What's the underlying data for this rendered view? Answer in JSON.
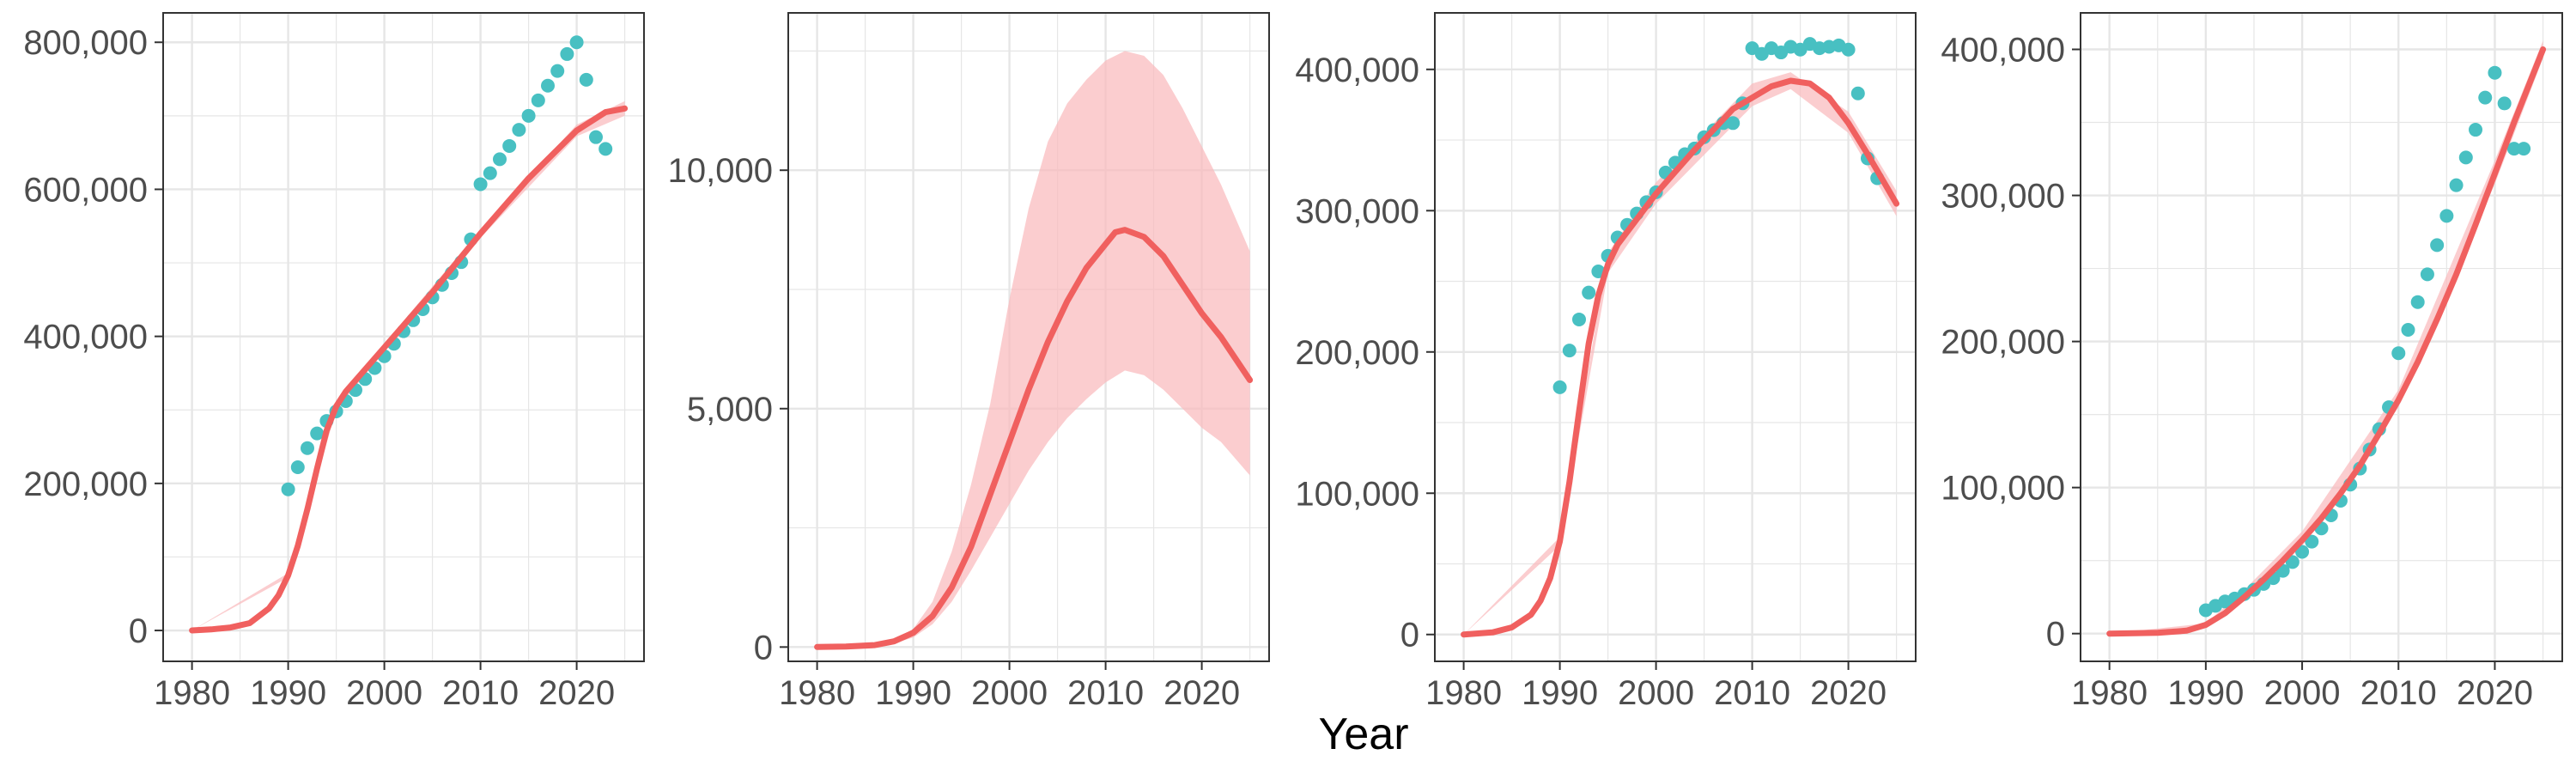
{
  "colors": {
    "fit_line": "#f0605f",
    "fit_band": "#f9b8bb",
    "observed_points": "#48c0c2",
    "grid": "#e6e6e6",
    "panel_border": "#333333",
    "tick_text": "#4d4d4d"
  },
  "chart_data": {
    "xlabel": "Year",
    "grid": true,
    "panels": [
      {
        "type": "line",
        "xlim": [
          1977,
          2027
        ],
        "ylim": [
          -42000,
          840000
        ],
        "xticks": [
          1980,
          1990,
          2000,
          2010,
          2020
        ],
        "yticks": [
          0,
          200000,
          400000,
          600000,
          800000
        ],
        "ytick_labels": [
          "0",
          "200,000",
          "400,000",
          "600,000",
          "800,000"
        ],
        "fit": {
          "x": [
            1980,
            1982,
            1984,
            1986,
            1988,
            1989,
            1990,
            1991,
            1992,
            1993,
            1994,
            1995,
            1996,
            2000,
            2005,
            2010,
            2015,
            2020,
            2023,
            2025
          ],
          "y": [
            0,
            1500,
            4000,
            10000,
            30000,
            48000,
            75000,
            115000,
            165000,
            220000,
            272000,
            305000,
            325000,
            385000,
            460000,
            540000,
            615000,
            680000,
            705000,
            710000
          ]
        },
        "band": {
          "x": [
            1980,
            1990,
            1995,
            2000,
            2010,
            2020,
            2025
          ],
          "lower": [
            0,
            72000,
            300000,
            380000,
            534000,
            672000,
            700000
          ],
          "upper": [
            0,
            78000,
            310000,
            390000,
            546000,
            688000,
            720000
          ]
        },
        "points": {
          "x": [
            1990,
            1991,
            1992,
            1993,
            1994,
            1995,
            1996,
            1997,
            1998,
            1999,
            2000,
            2001,
            2002,
            2003,
            2004,
            2005,
            2006,
            2007,
            2008,
            2009,
            2010,
            2011,
            2012,
            2013,
            2014,
            2015,
            2016,
            2017,
            2018,
            2019,
            2020,
            2021,
            2022,
            2023
          ],
          "y": [
            192000,
            222000,
            248000,
            268000,
            285000,
            298000,
            312000,
            327000,
            342000,
            357000,
            373000,
            390000,
            407000,
            422000,
            437000,
            453000,
            470000,
            486000,
            501000,
            532000,
            607000,
            622000,
            641000,
            659000,
            681000,
            700000,
            721000,
            741000,
            761000,
            784000,
            800000,
            749000,
            671000,
            655000
          ]
        }
      },
      {
        "type": "line",
        "xlim": [
          1977,
          2027
        ],
        "ylim": [
          -300,
          13300
        ],
        "xticks": [
          1980,
          1990,
          2000,
          2010,
          2020
        ],
        "yticks": [
          0,
          5000,
          10000
        ],
        "ytick_labels": [
          "0",
          "5,000",
          "10,000"
        ],
        "fit": {
          "x": [
            1980,
            1983,
            1986,
            1988,
            1990,
            1992,
            1994,
            1996,
            1998,
            2000,
            2002,
            2004,
            2006,
            2008,
            2010,
            2011,
            2012,
            2014,
            2016,
            2018,
            2020,
            2022,
            2025
          ],
          "y": [
            0,
            10,
            40,
            120,
            300,
            650,
            1250,
            2100,
            3200,
            4300,
            5400,
            6400,
            7250,
            7950,
            8450,
            8700,
            8750,
            8600,
            8200,
            7600,
            7000,
            6500,
            5600
          ]
        },
        "band": {
          "x": [
            1980,
            1985,
            1988,
            1990,
            1992,
            1994,
            1996,
            1998,
            2000,
            2002,
            2004,
            2006,
            2008,
            2010,
            2012,
            2014,
            2016,
            2018,
            2020,
            2022,
            2025
          ],
          "lower": [
            0,
            20,
            80,
            200,
            480,
            950,
            1600,
            2300,
            3000,
            3700,
            4300,
            4800,
            5200,
            5550,
            5800,
            5700,
            5400,
            5000,
            4600,
            4300,
            3600
          ],
          "upper": [
            0,
            40,
            150,
            380,
            950,
            2000,
            3400,
            5100,
            7300,
            9200,
            10600,
            11400,
            11900,
            12300,
            12500,
            12400,
            12000,
            11300,
            10500,
            9700,
            8300
          ]
        }
      },
      {
        "type": "line",
        "xlim": [
          1977,
          2027
        ],
        "ylim": [
          -19000,
          440000
        ],
        "xticks": [
          1980,
          1990,
          2000,
          2010,
          2020
        ],
        "yticks": [
          0,
          100000,
          200000,
          300000,
          400000
        ],
        "ytick_labels": [
          "0",
          "100,000",
          "200,000",
          "300,000",
          "400,000"
        ],
        "fit": {
          "x": [
            1980,
            1983,
            1985,
            1987,
            1988,
            1989,
            1990,
            1991,
            1992,
            1993,
            1994,
            1995,
            1996,
            1998,
            2000,
            2004,
            2008,
            2012,
            2014,
            2016,
            2018,
            2020,
            2022,
            2025
          ],
          "y": [
            0,
            1500,
            5000,
            14000,
            24000,
            40000,
            66000,
            108000,
            158000,
            206000,
            240000,
            262000,
            276000,
            294000,
            312000,
            343000,
            372000,
            388000,
            392000,
            390000,
            380000,
            362000,
            340000,
            305000
          ]
        },
        "band": {
          "x": [
            1980,
            1990,
            1995,
            2000,
            2010,
            2014,
            2020,
            2025
          ],
          "lower": [
            0,
            63000,
            256000,
            305000,
            374000,
            386000,
            355000,
            296000
          ],
          "upper": [
            0,
            69000,
            270000,
            320000,
            390000,
            398000,
            370000,
            314000
          ]
        },
        "points": {
          "x": [
            1990,
            1991,
            1992,
            1993,
            1994,
            1995,
            1996,
            1997,
            1998,
            1999,
            2000,
            2001,
            2002,
            2003,
            2004,
            2005,
            2006,
            2007,
            2008,
            2009,
            2010,
            2011,
            2012,
            2013,
            2014,
            2015,
            2016,
            2017,
            2018,
            2019,
            2020,
            2021,
            2022,
            2023
          ],
          "y": [
            175000,
            201000,
            223000,
            242000,
            257000,
            268000,
            281000,
            290000,
            298000,
            306000,
            313000,
            327000,
            334000,
            340000,
            344000,
            352000,
            357000,
            362000,
            362000,
            376000,
            415000,
            411000,
            415000,
            412000,
            416000,
            414000,
            418000,
            415000,
            416000,
            417000,
            414000,
            383000,
            337000,
            323000
          ]
        }
      },
      {
        "type": "line",
        "xlim": [
          1977,
          2027
        ],
        "ylim": [
          -19000,
          425000
        ],
        "xticks": [
          1980,
          1990,
          2000,
          2010,
          2020
        ],
        "yticks": [
          0,
          100000,
          200000,
          300000,
          400000
        ],
        "ytick_labels": [
          "0",
          "100,000",
          "200,000",
          "300,000",
          "400,000"
        ],
        "fit": {
          "x": [
            1980,
            1985,
            1988,
            1990,
            1992,
            1994,
            1996,
            1998,
            2000,
            2002,
            2004,
            2006,
            2008,
            2010,
            2012,
            2014,
            2016,
            2018,
            2020,
            2022,
            2025
          ],
          "y": [
            0,
            500,
            2000,
            6000,
            14000,
            25000,
            37000,
            50000,
            64000,
            79000,
            96000,
            115000,
            137000,
            160000,
            186000,
            215000,
            246000,
            280000,
            315000,
            350000,
            400000
          ]
        },
        "band": {
          "x": [
            1980,
            1990,
            1994,
            2000,
            2010,
            2020,
            2025
          ],
          "lower": [
            0,
            5000,
            22000,
            60000,
            155000,
            308000,
            394000
          ],
          "upper": [
            0,
            7000,
            30000,
            70000,
            167000,
            324000,
            406000
          ]
        },
        "points": {
          "x": [
            1990,
            1991,
            1992,
            1993,
            1994,
            1995,
            1996,
            1997,
            1998,
            1999,
            2000,
            2001,
            2002,
            2003,
            2004,
            2005,
            2006,
            2007,
            2008,
            2009,
            2010,
            2011,
            2012,
            2013,
            2014,
            2015,
            2016,
            2017,
            2018,
            2019,
            2020,
            2021,
            2022,
            2023
          ],
          "y": [
            16000,
            19000,
            22000,
            24000,
            27000,
            30000,
            34000,
            38000,
            43000,
            49000,
            56000,
            63000,
            72000,
            81000,
            91000,
            102000,
            113000,
            126000,
            140000,
            155000,
            192000,
            208000,
            227000,
            246000,
            266000,
            286000,
            307000,
            326000,
            345000,
            367000,
            384000,
            363000,
            332000,
            332000
          ]
        }
      }
    ]
  }
}
